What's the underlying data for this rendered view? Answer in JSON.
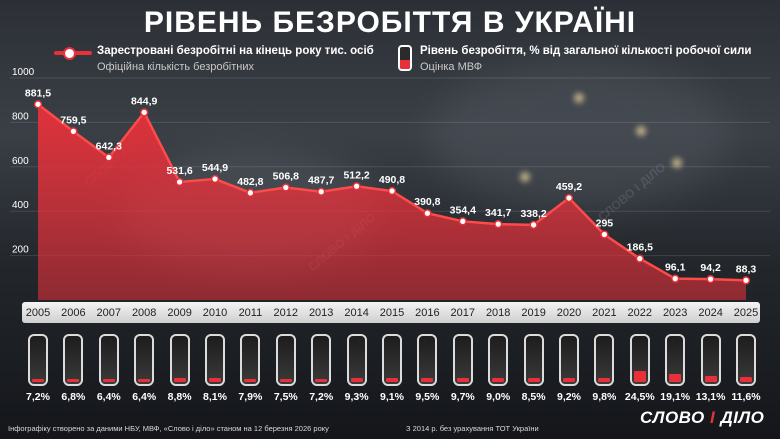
{
  "title": "РІВЕНЬ БЕЗРОБІТТЯ В УКРАЇНІ",
  "legend": {
    "line_main": "Зарестровані безробітні на кінець року тис. осіб",
    "line_sub": "Офіційна кількість безробітних",
    "battery_main": "Рівень безробіття, % від загальної кількості робочої сили",
    "battery_sub": "Оцінка МВФ"
  },
  "chart_data": {
    "type": "area",
    "title": "РІВЕНЬ БЕЗРОБІТТЯ В УКРАЇНІ",
    "ylim": [
      0,
      1000
    ],
    "yticks": [
      "200",
      "400",
      "600",
      "800",
      "1000"
    ],
    "categories": [
      "2005",
      "2006",
      "2007",
      "2008",
      "2009",
      "2010",
      "2011",
      "2012",
      "2013",
      "2014",
      "2015",
      "2016",
      "2017",
      "2018",
      "2019",
      "2020",
      "2021",
      "2022",
      "2023",
      "2024",
      "2025"
    ],
    "series": [
      {
        "name": "Зарестровані безробітні на кінець року тис. осіб",
        "values": [
          881.5,
          759.5,
          642.3,
          844.9,
          531.6,
          544.9,
          482.8,
          506.8,
          487.7,
          512.2,
          490.8,
          390.8,
          354.4,
          341.7,
          338.2,
          459.2,
          295,
          186.5,
          96.1,
          94.2,
          88.3
        ],
        "labels": [
          "881,5",
          "759,5",
          "642,3",
          "844,9",
          "531,6",
          "544,9",
          "482,8",
          "506,8",
          "487,7",
          "512,2",
          "490,8",
          "390,8",
          "354,4",
          "341,7",
          "338,2",
          "459,2",
          "295",
          "186,5",
          "96,1",
          "94,2",
          "88,3"
        ]
      },
      {
        "name": "Рівень безробіття, % від загальної кількості робочої сили",
        "values": [
          7.2,
          6.8,
          6.4,
          6.4,
          8.8,
          8.1,
          7.9,
          7.5,
          7.2,
          9.3,
          9.1,
          9.5,
          9.7,
          9.0,
          8.5,
          9.2,
          9.8,
          24.5,
          19.1,
          13.1,
          11.6
        ],
        "labels": [
          "7,2%",
          "6,8%",
          "6,4%",
          "6,4%",
          "8,8%",
          "8,1%",
          "7,9%",
          "7,5%",
          "7,2%",
          "9,3%",
          "9,1%",
          "9,5%",
          "9,7%",
          "9,0%",
          "8,5%",
          "9,2%",
          "9,8%",
          "24,5%",
          "19,1%",
          "13,1%",
          "11,6%"
        ]
      }
    ]
  },
  "footer": {
    "source": "Інфографіку створено за даними НБУ, МВФ, «Слово і діло» станом на 12 березня 2026 року",
    "note": "З 2014 р. без урахування ТОТ України"
  },
  "logo": {
    "word1": "СЛОВО",
    "amp": "І",
    "word2": "ДІЛО"
  },
  "watermark": "СЛОВО І ДІЛО",
  "colors": {
    "accent": "#e8303a",
    "text": "#ffffff"
  }
}
